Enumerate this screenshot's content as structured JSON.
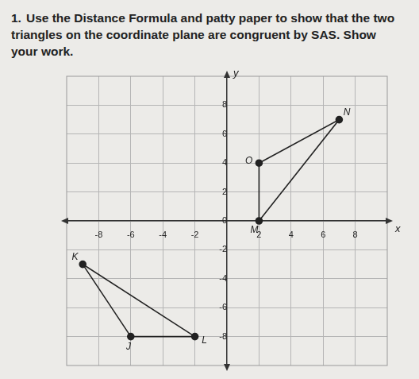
{
  "document": {
    "number": "1.",
    "instructions": "Use the Distance Formula and patty paper to show that the two triangles on the coordinate plane are congruent by SAS.",
    "prompt": "Show your work."
  },
  "chart_data": {
    "type": "scatter",
    "x_label": "x",
    "y_label": "y",
    "xlim": [
      -10,
      10
    ],
    "ylim": [
      -10,
      10
    ],
    "xticks": [
      -8,
      -6,
      -4,
      -2,
      2,
      4,
      6,
      8
    ],
    "yticks": [
      -8,
      -6,
      -4,
      -2,
      0,
      2,
      4,
      6,
      8
    ],
    "grid": true,
    "color": "#222222",
    "series": [
      {
        "x": [
          -6,
          -9,
          -2
        ],
        "values": [
          -8,
          -3,
          -8
        ],
        "point_labels": [
          "J",
          "K",
          "L"
        ]
      },
      {
        "x": [
          2,
          7,
          2
        ],
        "values": [
          0,
          7,
          4
        ],
        "point_labels": [
          "M",
          "N",
          "O"
        ]
      }
    ]
  }
}
